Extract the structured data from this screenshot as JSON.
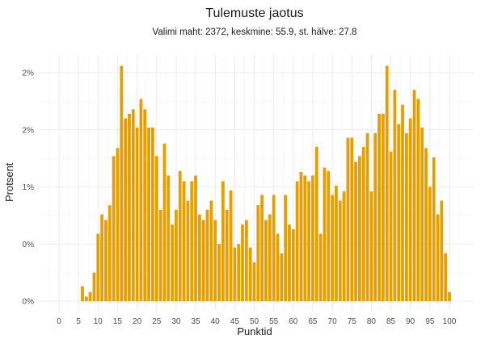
{
  "chart_data": {
    "type": "bar",
    "title": "Tulemuste jaotus",
    "subtitle": "Valimi maht: 2372, keskmine: 55.9, st. hälve: 27.8",
    "xlabel": "Punktid",
    "ylabel": "Protsent",
    "bar_color": "#E69F00",
    "grid": true,
    "xlim": [
      -3,
      103
    ],
    "ylim": [
      0,
      2.12
    ],
    "x_ticks": [
      0,
      5,
      10,
      15,
      20,
      25,
      30,
      35,
      40,
      45,
      50,
      55,
      60,
      65,
      70,
      75,
      80,
      85,
      90,
      95,
      100
    ],
    "y_ticks": [
      0,
      0.5,
      1.0,
      1.5,
      2.0
    ],
    "y_tick_labels": [
      "0%",
      "0%",
      "1%",
      "2%",
      "2%"
    ],
    "x": [
      6,
      7,
      8,
      9,
      10,
      11,
      12,
      13,
      14,
      15,
      16,
      17,
      18,
      19,
      20,
      21,
      22,
      23,
      24,
      25,
      26,
      27,
      28,
      29,
      30,
      31,
      32,
      33,
      34,
      35,
      36,
      37,
      38,
      39,
      40,
      41,
      42,
      43,
      44,
      45,
      46,
      47,
      48,
      49,
      50,
      51,
      52,
      53,
      54,
      55,
      56,
      57,
      58,
      59,
      60,
      61,
      62,
      63,
      64,
      65,
      66,
      67,
      68,
      69,
      70,
      71,
      72,
      73,
      74,
      75,
      76,
      77,
      78,
      79,
      80,
      81,
      82,
      83,
      84,
      85,
      86,
      87,
      88,
      89,
      90,
      91,
      92,
      93,
      94,
      95,
      96,
      97,
      98,
      99,
      100
    ],
    "values": [
      0.13,
      0.04,
      0.08,
      0.25,
      0.59,
      0.76,
      0.71,
      0.84,
      1.27,
      1.34,
      2.06,
      1.6,
      1.64,
      1.68,
      1.52,
      1.77,
      1.68,
      1.52,
      1.52,
      1.27,
      0.8,
      1.38,
      1.1,
      0.67,
      0.8,
      1.14,
      1.05,
      0.88,
      1.05,
      1.1,
      0.76,
      0.71,
      0.8,
      0.88,
      0.71,
      0.5,
      1.05,
      0.8,
      0.97,
      0.47,
      0.5,
      0.67,
      0.71,
      0.47,
      0.34,
      0.84,
      0.93,
      0.71,
      0.76,
      0.93,
      0.59,
      0.42,
      0.93,
      0.67,
      0.63,
      1.05,
      1.13,
      1.1,
      1.05,
      1.1,
      1.35,
      0.59,
      1.17,
      1.14,
      0.93,
      1.01,
      0.88,
      0.96,
      1.43,
      1.43,
      1.22,
      1.27,
      1.35,
      1.47,
      0.96,
      1.47,
      1.64,
      1.64,
      2.06,
      1.31,
      1.85,
      1.55,
      1.72,
      1.47,
      1.6,
      1.85,
      1.77,
      1.52,
      1.34,
      1.0,
      1.26,
      0.76,
      0.88,
      0.42,
      0.08
    ]
  }
}
